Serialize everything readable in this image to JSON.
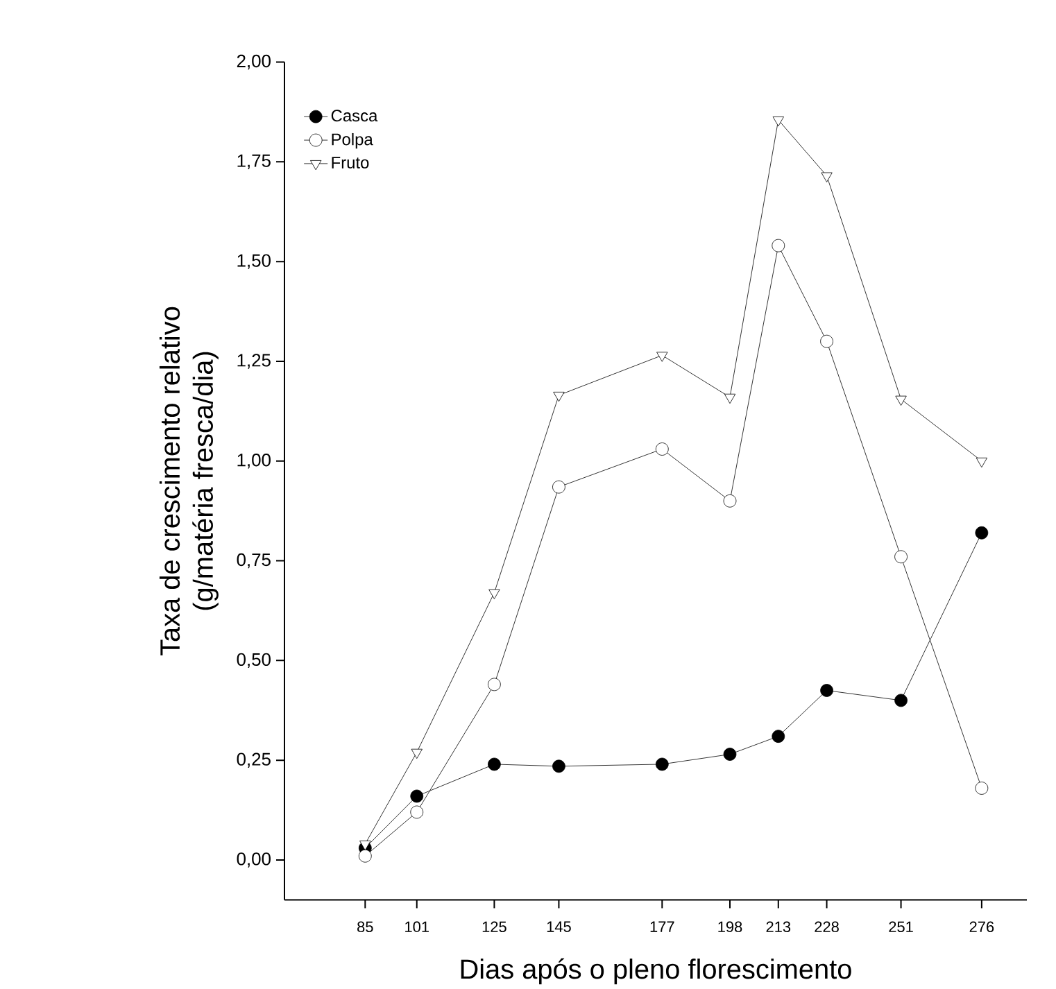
{
  "chart_data": {
    "type": "line",
    "xlabel": "Dias após o pleno florescimento",
    "ylabel": "Taxa de crescimento relativo\n(g/matéria fresca/dia)",
    "x": [
      85,
      101,
      125,
      145,
      177,
      198,
      213,
      228,
      251,
      276
    ],
    "xlim": [
      60,
      290
    ],
    "xticks": [
      85,
      101,
      125,
      145,
      177,
      198,
      213,
      228,
      251,
      276
    ],
    "ylim": [
      -0.1,
      2.0
    ],
    "yticks": [
      {
        "value": 0,
        "label": "0,00"
      },
      {
        "value": 0.25,
        "label": "0,25"
      },
      {
        "value": 0.5,
        "label": "0,50"
      },
      {
        "value": 0.75,
        "label": "0,75"
      },
      {
        "value": 1.0,
        "label": "1,00"
      },
      {
        "value": 1.25,
        "label": "1,25"
      },
      {
        "value": 1.5,
        "label": "1,50"
      },
      {
        "value": 1.75,
        "label": "1,75"
      },
      {
        "value": 2.0,
        "label": "2,00"
      }
    ],
    "legend": "top left",
    "grid": false,
    "line_style": "solid",
    "series": [
      {
        "name": "Casca",
        "color": "#000000",
        "marker": "circle",
        "values": [
          0.03,
          0.16,
          0.24,
          0.235,
          0.24,
          0.265,
          0.31,
          0.425,
          0.4,
          0.82
        ]
      },
      {
        "name": "Polpa",
        "color": "#ffffff",
        "marker": "circle",
        "values": [
          0.01,
          0.12,
          0.44,
          0.935,
          1.03,
          0.9,
          1.54,
          1.3,
          0.76,
          0.18
        ]
      },
      {
        "name": "Fruto",
        "color": "#ffffff",
        "marker": "triangle",
        "values": [
          0.04,
          0.27,
          0.67,
          1.165,
          1.265,
          1.16,
          1.855,
          1.715,
          1.155,
          1.0
        ]
      }
    ]
  }
}
